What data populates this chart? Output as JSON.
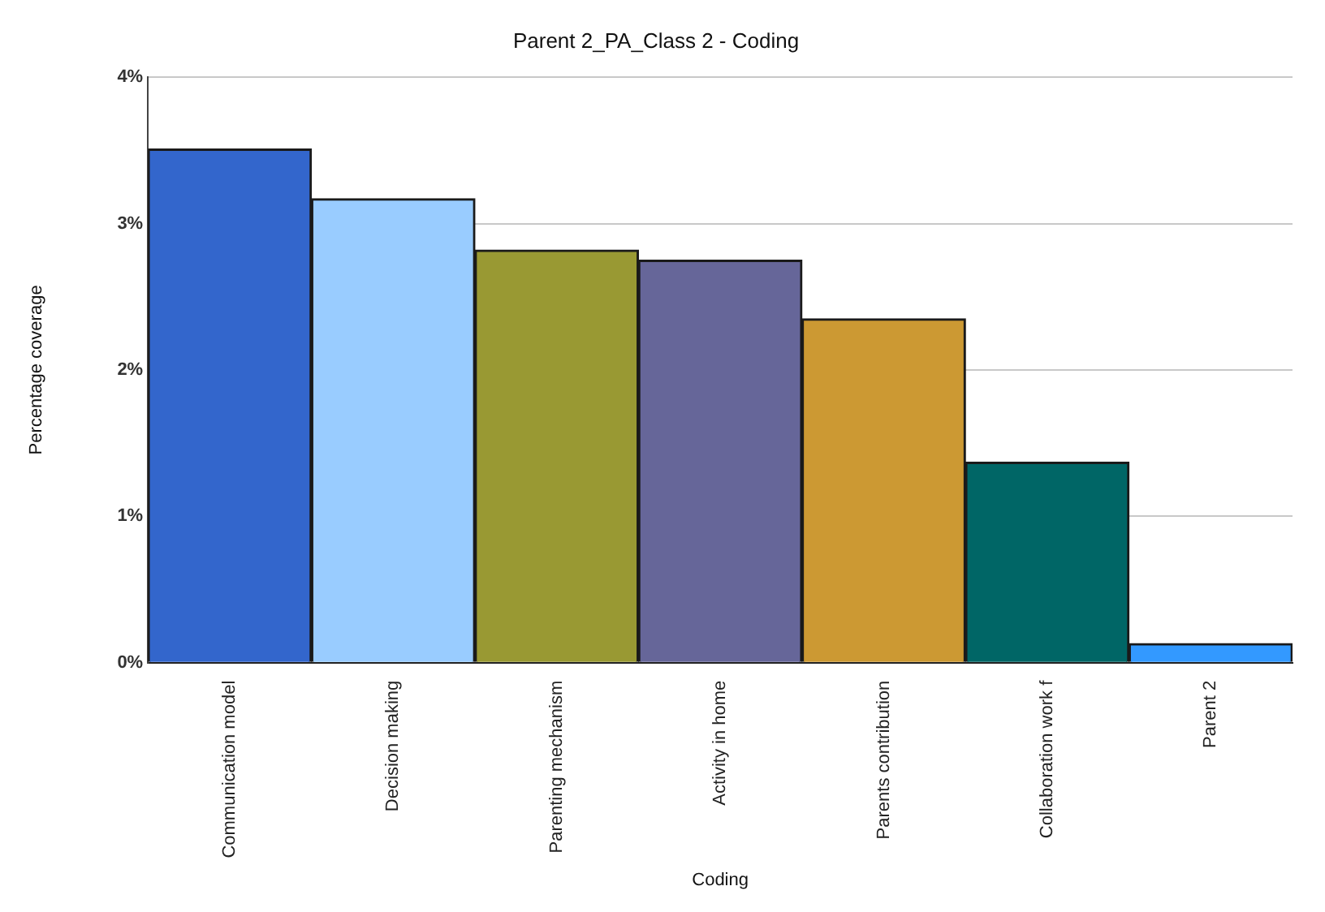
{
  "chart_data": {
    "type": "bar",
    "title": "Parent 2_PA_Class 2 - Coding",
    "xlabel": "Coding",
    "ylabel": "Percentage coverage",
    "categories": [
      "Communication model",
      "Decision making",
      "Parenting mechanism",
      "Activity in home",
      "Parents contribution",
      "Collaboration work f",
      "Parent 2"
    ],
    "values": [
      3.51,
      3.17,
      2.82,
      2.75,
      2.35,
      1.37,
      0.13
    ],
    "colors": [
      "#3366cc",
      "#99ccff",
      "#999933",
      "#666699",
      "#cc9933",
      "#006666",
      "#3399ff"
    ],
    "ylim": [
      0,
      4
    ],
    "yticks": [
      {
        "value": 0,
        "label": "0%"
      },
      {
        "value": 1,
        "label": "1%"
      },
      {
        "value": 2,
        "label": "2%"
      },
      {
        "value": 3,
        "label": "3%"
      },
      {
        "value": 4,
        "label": "4%"
      }
    ],
    "grid": "y",
    "legend": false
  }
}
